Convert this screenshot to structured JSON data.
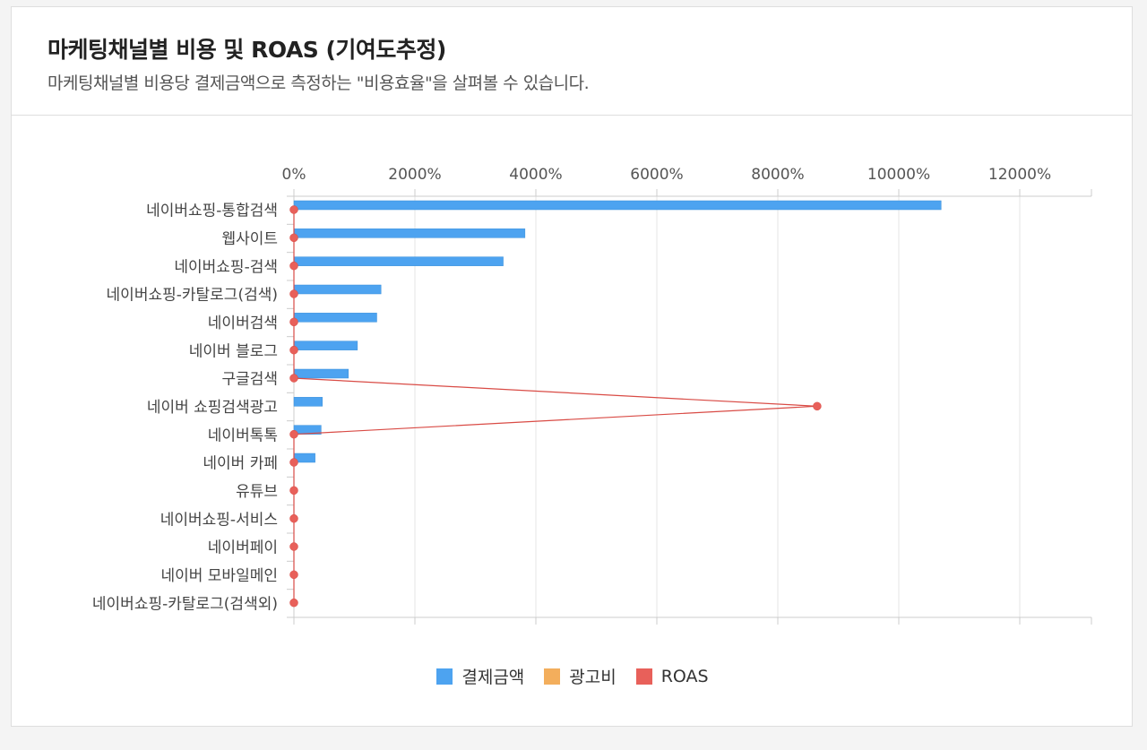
{
  "header": {
    "title": "마케팅채널별 비용 및 ROAS (기여도추정)",
    "subtitle": "마케팅채널별 비용당 결제금액으로 측정하는 \"비용효율\"을 살펴볼 수 있습니다."
  },
  "colors": {
    "payment": "#4da3f0",
    "adcost": "#f3ae5c",
    "roas": "#e8605a",
    "grid": "#e6e6e6",
    "axis": "#cccccc"
  },
  "chart_data": {
    "type": "bar",
    "orientation": "horizontal",
    "x_ticks": [
      "0%",
      "2000%",
      "4000%",
      "6000%",
      "8000%",
      "10000%",
      "12000%"
    ],
    "xlim": [
      0,
      13200
    ],
    "axis_position": "top",
    "grid": true,
    "legend_position": "bottom",
    "categories": [
      "네이버쇼핑-통합검색",
      "웹사이트",
      "네이버쇼핑-검색",
      "네이버쇼핑-카탈로그(검색)",
      "네이버검색",
      "네이버 블로그",
      "구글검색",
      "네이버 쇼핑검색광고",
      "네이버톡톡",
      "네이버 카페",
      "유튜브",
      "네이버쇼핑-서비스",
      "네이버페이",
      "네이버 모바일메인",
      "네이버쇼핑-카탈로그(검색외)"
    ],
    "series": [
      {
        "name": "결제금액",
        "type": "bar",
        "values": [
          10700,
          3820,
          3460,
          1440,
          1370,
          1050,
          900,
          470,
          450,
          350,
          0,
          0,
          0,
          0,
          0
        ]
      },
      {
        "name": "광고비",
        "type": "bar",
        "values": [
          0,
          0,
          0,
          0,
          0,
          0,
          0,
          0,
          0,
          0,
          0,
          0,
          0,
          0,
          0
        ]
      },
      {
        "name": "ROAS",
        "type": "line",
        "values": [
          0,
          0,
          0,
          0,
          0,
          0,
          0,
          8650,
          0,
          0,
          0,
          0,
          0,
          0,
          0
        ]
      }
    ]
  }
}
